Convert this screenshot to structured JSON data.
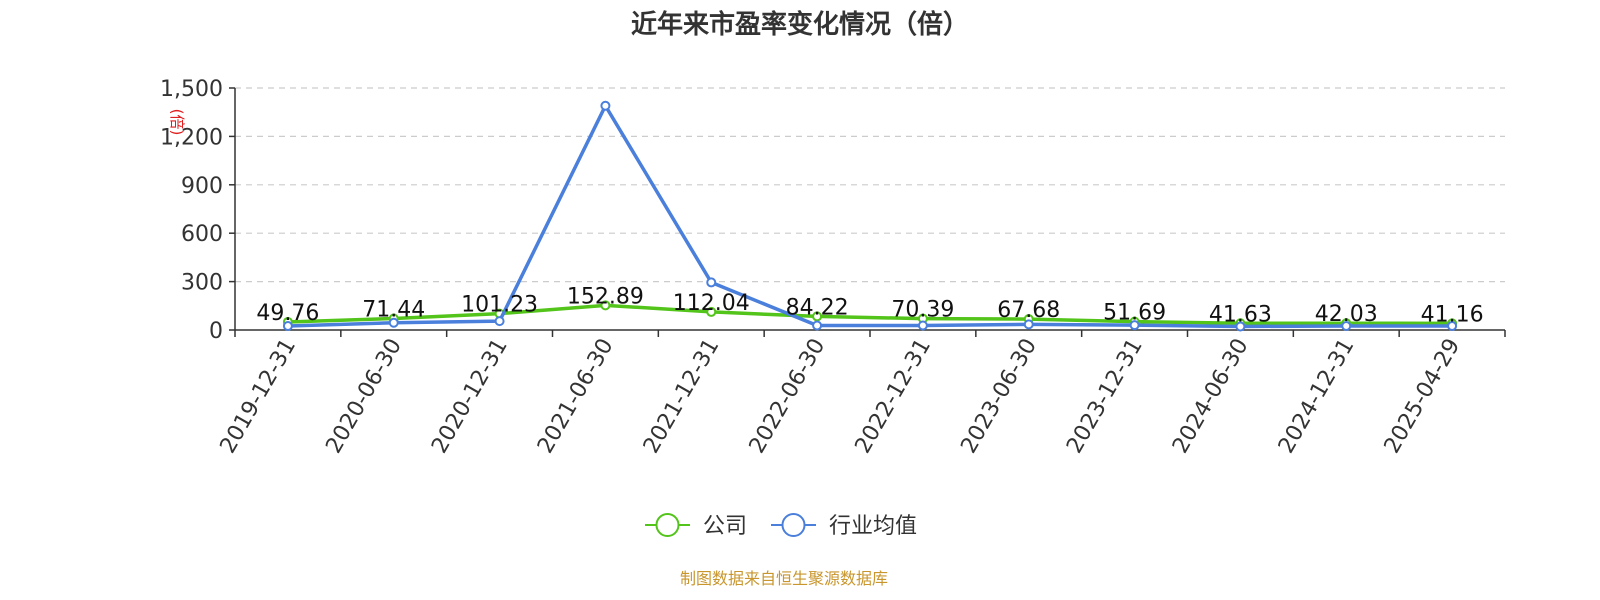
{
  "chart_data": {
    "type": "line",
    "title": "近年来市盈率变化情况（倍）",
    "ylabel": "(倍)",
    "xlabel": "",
    "categories": [
      "2019-12-31",
      "2020-06-30",
      "2020-12-31",
      "2021-06-30",
      "2021-12-31",
      "2022-06-30",
      "2022-12-31",
      "2023-06-30",
      "2023-12-31",
      "2024-06-30",
      "2024-12-31",
      "2025-04-29"
    ],
    "series": [
      {
        "name": "公司",
        "color": "#52c41a",
        "values": [
          49.76,
          71.44,
          101.23,
          152.89,
          112.04,
          84.22,
          70.39,
          67.68,
          51.69,
          41.63,
          42.03,
          41.16
        ],
        "labels": [
          "49.76",
          "71.44",
          "101.23",
          "152.89",
          "112.04",
          "84.22",
          "70.39",
          "67.68",
          "51.69",
          "41.63",
          "42.03",
          "41.16"
        ]
      },
      {
        "name": "行业均值",
        "color": "#4a7fdc",
        "values": [
          25,
          45,
          55,
          1390,
          295,
          28,
          28,
          35,
          30,
          22,
          25,
          25
        ]
      }
    ],
    "ylim": [
      0,
      1500
    ],
    "yticks": [
      0,
      300,
      600,
      900,
      1200,
      1500
    ],
    "ytick_labels": [
      "0",
      "300",
      "600",
      "900",
      "1,200",
      "1,500"
    ],
    "grid": true,
    "legend_position": "bottom-center"
  },
  "footer": {
    "source": "制图数据来自恒生聚源数据库"
  }
}
